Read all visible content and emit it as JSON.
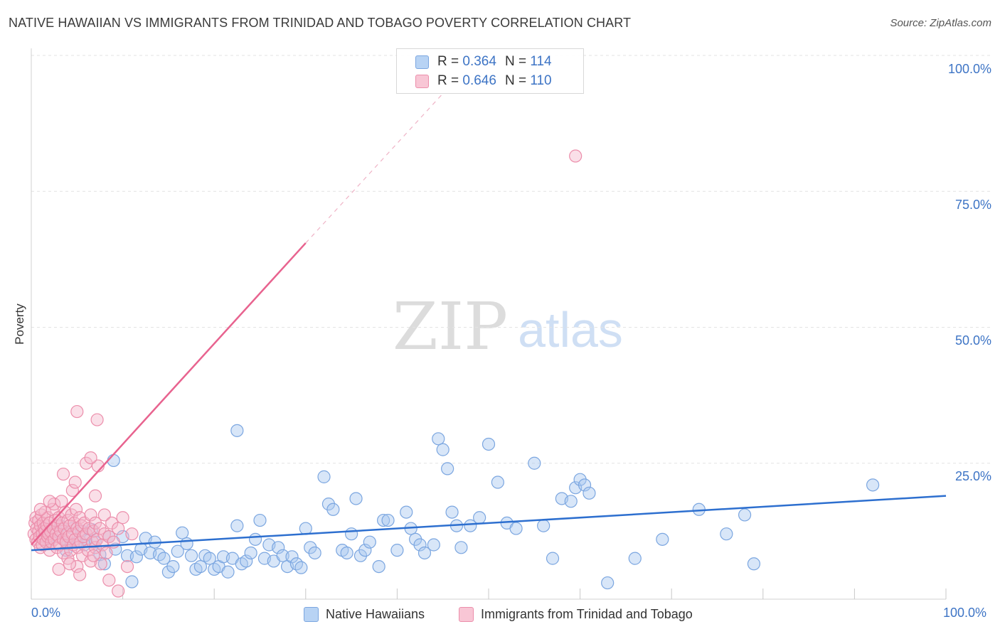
{
  "title": "NATIVE HAWAIIAN VS IMMIGRANTS FROM TRINIDAD AND TOBAGO POVERTY CORRELATION CHART",
  "source": "Source: ZipAtlas.com",
  "watermark": {
    "part1": "ZIP",
    "part2": "atlas"
  },
  "colors": {
    "blue_fill": "#a9c8f0",
    "blue_stroke": "#7ba6e0",
    "blue_line": "#2d6fcf",
    "pink_fill": "#f5b8cb",
    "pink_stroke": "#ec8eab",
    "pink_line": "#e8638f",
    "axis_text": "#3d74c5",
    "grid": "#e3e3e3"
  },
  "legend": {
    "rows": [
      {
        "r_label": "R = ",
        "r_value": "0.364",
        "n_label": "N = ",
        "n_value": "114"
      },
      {
        "r_label": "R = ",
        "r_value": "0.646",
        "n_label": "N = ",
        "n_value": "110"
      }
    ]
  },
  "bottom_legend": [
    "Native Hawaiians",
    "Immigrants from Trinidad and Tobago"
  ],
  "chart_data": {
    "type": "scatter",
    "title": "NATIVE HAWAIIAN VS IMMIGRANTS FROM TRINIDAD AND TOBAGO POVERTY CORRELATION CHART",
    "xlabel": "",
    "ylabel": "Poverty",
    "xlim": [
      0,
      100
    ],
    "ylim": [
      0,
      100
    ],
    "x_tick_labels": [
      "0.0%",
      "100.0%"
    ],
    "y_tick_labels": [
      "25.0%",
      "50.0%",
      "75.0%",
      "100.0%"
    ],
    "y_ticks": [
      25,
      50,
      75,
      100
    ],
    "grid": true,
    "legend_position": "top-center",
    "series": [
      {
        "name": "Native Hawaiians",
        "color": "#a9c8f0",
        "trend": {
          "x": [
            0,
            100
          ],
          "y": [
            9.0,
            19.0
          ]
        },
        "points": [
          [
            1.2,
            12.0
          ],
          [
            1.8,
            10.5
          ],
          [
            2.2,
            11.2
          ],
          [
            2.8,
            12.5
          ],
          [
            3.2,
            13.5
          ],
          [
            3.5,
            11.0
          ],
          [
            4.0,
            10.2
          ],
          [
            4.5,
            13.0
          ],
          [
            5.0,
            10.5
          ],
          [
            5.5,
            12.5
          ],
          [
            6.0,
            10.8
          ],
          [
            6.6,
            12.8
          ],
          [
            7.0,
            10.5
          ],
          [
            7.5,
            8.2
          ],
          [
            8.0,
            6.5
          ],
          [
            8.5,
            11.5
          ],
          [
            9.2,
            9.2
          ],
          [
            10.0,
            11.5
          ],
          [
            10.5,
            8.0
          ],
          [
            11.0,
            3.2
          ],
          [
            11.5,
            7.8
          ],
          [
            12.0,
            9.2
          ],
          [
            12.5,
            11.2
          ],
          [
            13.0,
            8.5
          ],
          [
            13.5,
            10.5
          ],
          [
            14.0,
            8.2
          ],
          [
            14.5,
            7.5
          ],
          [
            15.0,
            5.0
          ],
          [
            15.5,
            6.0
          ],
          [
            16.0,
            8.8
          ],
          [
            16.5,
            12.2
          ],
          [
            17.0,
            10.2
          ],
          [
            17.5,
            8.0
          ],
          [
            18.0,
            5.5
          ],
          [
            18.5,
            6.0
          ],
          [
            19.0,
            8.0
          ],
          [
            19.5,
            7.5
          ],
          [
            20.0,
            5.5
          ],
          [
            20.5,
            6.0
          ],
          [
            21.0,
            7.8
          ],
          [
            21.5,
            5.0
          ],
          [
            22.0,
            7.5
          ],
          [
            22.5,
            13.5
          ],
          [
            23.0,
            6.5
          ],
          [
            23.5,
            7.0
          ],
          [
            24.0,
            8.5
          ],
          [
            24.5,
            11.0
          ],
          [
            25.0,
            14.5
          ],
          [
            25.5,
            7.5
          ],
          [
            26.0,
            10.0
          ],
          [
            26.5,
            7.0
          ],
          [
            27.0,
            9.5
          ],
          [
            27.5,
            8.0
          ],
          [
            28.0,
            6.0
          ],
          [
            28.5,
            7.8
          ],
          [
            29.0,
            6.5
          ],
          [
            29.5,
            5.8
          ],
          [
            30.0,
            13.0
          ],
          [
            30.5,
            9.5
          ],
          [
            31.0,
            8.5
          ],
          [
            32.0,
            22.5
          ],
          [
            32.5,
            17.5
          ],
          [
            33.0,
            16.5
          ],
          [
            34.0,
            9.0
          ],
          [
            34.5,
            8.5
          ],
          [
            35.0,
            12.0
          ],
          [
            35.5,
            18.5
          ],
          [
            36.0,
            8.0
          ],
          [
            36.5,
            9.0
          ],
          [
            37.0,
            10.5
          ],
          [
            38.0,
            6.0
          ],
          [
            38.5,
            14.5
          ],
          [
            39.0,
            14.5
          ],
          [
            40.0,
            9.0
          ],
          [
            41.0,
            16.0
          ],
          [
            41.5,
            13.0
          ],
          [
            42.0,
            11.0
          ],
          [
            42.5,
            10.0
          ],
          [
            43.0,
            8.5
          ],
          [
            44.0,
            10.0
          ],
          [
            44.5,
            29.5
          ],
          [
            45.0,
            27.5
          ],
          [
            45.5,
            24.0
          ],
          [
            46.0,
            16.0
          ],
          [
            46.5,
            13.5
          ],
          [
            47.0,
            9.5
          ],
          [
            48.0,
            13.5
          ],
          [
            49.0,
            15.0
          ],
          [
            50.0,
            28.5
          ],
          [
            51.0,
            21.5
          ],
          [
            52.0,
            14.0
          ],
          [
            53.0,
            13.0
          ],
          [
            55.0,
            25.0
          ],
          [
            56.0,
            13.5
          ],
          [
            57.0,
            7.5
          ],
          [
            58.0,
            18.5
          ],
          [
            59.0,
            18.0
          ],
          [
            59.5,
            20.5
          ],
          [
            60.0,
            22.0
          ],
          [
            60.5,
            21.0
          ],
          [
            61.0,
            19.5
          ],
          [
            63.0,
            3.0
          ],
          [
            66.0,
            7.5
          ],
          [
            69.0,
            11.0
          ],
          [
            73.0,
            16.5
          ],
          [
            76.0,
            12.0
          ],
          [
            78.0,
            15.5
          ],
          [
            79.0,
            6.5
          ],
          [
            92.0,
            21.0
          ],
          [
            22.5,
            31.0
          ],
          [
            9.0,
            25.5
          ],
          [
            1.5,
            13.0
          ],
          [
            3.8,
            9.0
          ],
          [
            5.8,
            10.0
          ]
        ]
      },
      {
        "name": "Immigrants from Trinidad and Tobago",
        "color": "#f5b8cb",
        "trend": {
          "x": [
            0,
            30
          ],
          "y": [
            10.0,
            65.5
          ],
          "dashed_to": {
            "x": 45,
            "y": 93.0
          }
        },
        "points": [
          [
            0.3,
            12.0
          ],
          [
            0.4,
            14.0
          ],
          [
            0.5,
            11.0
          ],
          [
            0.5,
            15.0
          ],
          [
            0.6,
            13.0
          ],
          [
            0.7,
            10.5
          ],
          [
            0.8,
            12.5
          ],
          [
            0.8,
            14.5
          ],
          [
            0.9,
            11.5
          ],
          [
            1.0,
            13.5
          ],
          [
            1.0,
            9.5
          ],
          [
            1.1,
            15.5
          ],
          [
            1.2,
            12.0
          ],
          [
            1.2,
            10.0
          ],
          [
            1.3,
            14.0
          ],
          [
            1.3,
            11.0
          ],
          [
            1.4,
            13.0
          ],
          [
            1.5,
            12.5
          ],
          [
            1.5,
            16.0
          ],
          [
            1.6,
            10.5
          ],
          [
            1.7,
            13.5
          ],
          [
            1.8,
            11.5
          ],
          [
            1.8,
            15.0
          ],
          [
            1.9,
            12.0
          ],
          [
            2.0,
            9.0
          ],
          [
            2.0,
            14.0
          ],
          [
            2.1,
            12.5
          ],
          [
            2.2,
            10.5
          ],
          [
            2.3,
            16.5
          ],
          [
            2.4,
            13.0
          ],
          [
            2.5,
            11.0
          ],
          [
            2.5,
            17.5
          ],
          [
            2.6,
            14.5
          ],
          [
            2.7,
            12.0
          ],
          [
            2.8,
            9.5
          ],
          [
            2.9,
            13.5
          ],
          [
            3.0,
            11.5
          ],
          [
            3.0,
            15.0
          ],
          [
            3.1,
            10.0
          ],
          [
            3.2,
            12.5
          ],
          [
            3.3,
            18.0
          ],
          [
            3.4,
            14.0
          ],
          [
            3.5,
            11.0
          ],
          [
            3.5,
            8.5
          ],
          [
            3.6,
            13.0
          ],
          [
            3.7,
            16.0
          ],
          [
            3.8,
            10.5
          ],
          [
            3.9,
            12.0
          ],
          [
            4.0,
            14.5
          ],
          [
            4.0,
            7.5
          ],
          [
            4.1,
            11.5
          ],
          [
            4.2,
            13.5
          ],
          [
            4.3,
            9.0
          ],
          [
            4.4,
            15.5
          ],
          [
            4.5,
            12.0
          ],
          [
            4.5,
            20.0
          ],
          [
            4.6,
            10.0
          ],
          [
            4.7,
            14.0
          ],
          [
            4.8,
            11.0
          ],
          [
            4.9,
            16.5
          ],
          [
            5.0,
            13.0
          ],
          [
            5.0,
            6.0
          ],
          [
            5.1,
            9.5
          ],
          [
            5.2,
            12.5
          ],
          [
            5.3,
            15.0
          ],
          [
            5.4,
            10.5
          ],
          [
            5.5,
            13.5
          ],
          [
            5.6,
            8.0
          ],
          [
            5.7,
            11.5
          ],
          [
            5.8,
            14.0
          ],
          [
            6.0,
            12.0
          ],
          [
            6.0,
            25.0
          ],
          [
            6.2,
            9.0
          ],
          [
            6.3,
            13.0
          ],
          [
            6.5,
            15.5
          ],
          [
            6.5,
            7.0
          ],
          [
            6.7,
            10.5
          ],
          [
            6.8,
            12.5
          ],
          [
            7.0,
            14.0
          ],
          [
            7.0,
            9.5
          ],
          [
            7.2,
            11.0
          ],
          [
            7.3,
            24.5
          ],
          [
            7.5,
            13.0
          ],
          [
            7.6,
            6.5
          ],
          [
            7.8,
            10.0
          ],
          [
            8.0,
            15.5
          ],
          [
            8.0,
            12.0
          ],
          [
            8.2,
            8.5
          ],
          [
            8.5,
            11.5
          ],
          [
            8.8,
            14.0
          ],
          [
            9.0,
            10.5
          ],
          [
            9.5,
            13.0
          ],
          [
            10.0,
            15.0
          ],
          [
            10.5,
            6.0
          ],
          [
            11.0,
            12.0
          ],
          [
            5.0,
            34.5
          ],
          [
            7.2,
            33.0
          ],
          [
            3.5,
            23.0
          ],
          [
            4.8,
            21.5
          ],
          [
            6.5,
            26.0
          ],
          [
            7.0,
            19.0
          ],
          [
            5.3,
            4.5
          ],
          [
            8.5,
            3.5
          ],
          [
            9.5,
            1.5
          ],
          [
            3.0,
            5.5
          ],
          [
            4.2,
            6.5
          ],
          [
            6.8,
            8.0
          ],
          [
            2.0,
            18.0
          ],
          [
            1.0,
            16.5
          ],
          [
            59.5,
            81.5
          ]
        ]
      }
    ]
  }
}
